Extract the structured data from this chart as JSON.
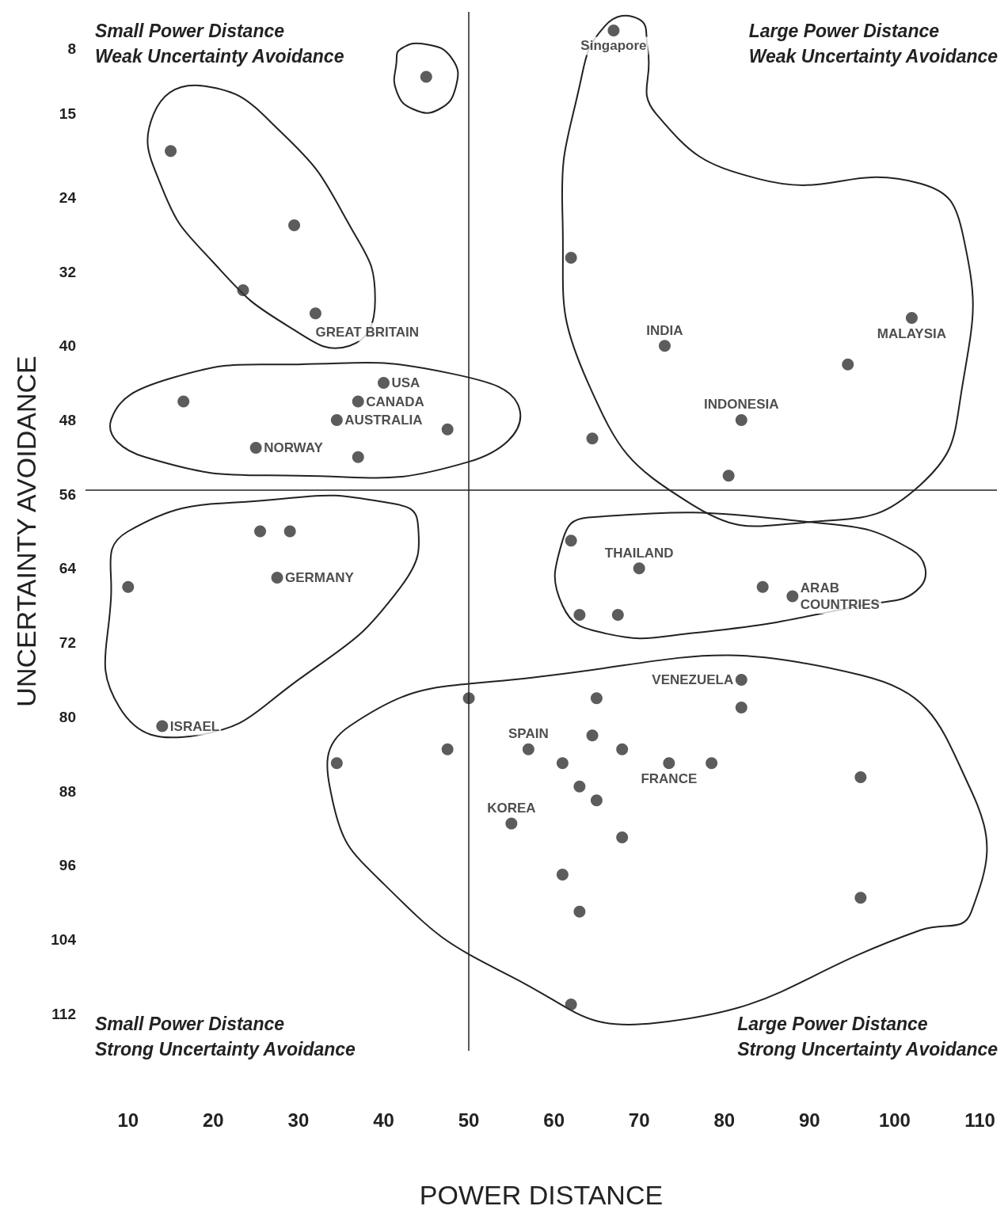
{
  "chart_data": {
    "type": "scatter",
    "xlabel": "POWER DISTANCE",
    "ylabel": "UNCERTAINTY AVOIDANCE",
    "xlim": [
      5,
      112
    ],
    "xticks": [
      10,
      20,
      30,
      40,
      50,
      60,
      70,
      80,
      90,
      100,
      110
    ],
    "ylim": [
      116,
      4
    ],
    "yticks": [
      8,
      15,
      24,
      32,
      40,
      48,
      56,
      64,
      72,
      80,
      88,
      96,
      104,
      112
    ],
    "grid": false,
    "marker": "circle",
    "series": [
      {
        "color": "#333333",
        "x": [
          67,
          45,
          15,
          29.5,
          23.5,
          32,
          73,
          102,
          94.5,
          62,
          82,
          64.5,
          80.5,
          40,
          37,
          16.5,
          34.5,
          47.5,
          25,
          37,
          25.5,
          29,
          27.5,
          10,
          14,
          62,
          70,
          84.5,
          88,
          63,
          67.5,
          82,
          82,
          65,
          50,
          64.5,
          57,
          47.5,
          34.5,
          61,
          68,
          73.5,
          78.5,
          96,
          63,
          65,
          55,
          68,
          61,
          63,
          96,
          62
        ],
        "values": [
          6,
          11,
          19,
          27,
          34,
          36.5,
          40,
          37,
          42,
          30.5,
          48,
          50,
          54,
          44,
          46,
          46,
          48,
          49,
          51,
          52,
          60,
          60,
          65,
          66,
          81,
          61,
          64,
          66,
          67,
          69,
          69,
          76,
          79,
          78,
          78,
          82,
          83.5,
          83.5,
          85,
          85,
          83.5,
          85,
          85,
          86.5,
          87.5,
          89,
          91.5,
          93,
          97,
          101,
          99.5,
          111
        ]
      }
    ],
    "ref_lines": [
      {
        "axis": "x",
        "value": 50
      },
      {
        "axis": "y",
        "value": 55.5
      }
    ],
    "annotations": [
      "Small Power Distance\nWeak Uncertainty Avoidance",
      "Large Power Distance\nWeak Uncertainty Avoidance",
      "Small Power Distance\nStrong Uncertainty Avoidance",
      "Large Power Distance\nStrong Uncertainty Avoidance",
      {
        "text": "Singapore",
        "x": 67,
        "y": 6
      },
      {
        "text": "GREAT BRITAIN",
        "x": 32,
        "y": 36.5
      },
      {
        "text": "INDIA",
        "x": 73,
        "y": 40
      },
      {
        "text": "MALAYSIA",
        "x": 102,
        "y": 37
      },
      {
        "text": "INDONESIA",
        "x": 82,
        "y": 48
      },
      {
        "text": "USA",
        "x": 40,
        "y": 44
      },
      {
        "text": "CANADA",
        "x": 37,
        "y": 46
      },
      {
        "text": "AUSTRALIA",
        "x": 34.5,
        "y": 48
      },
      {
        "text": "NORWAY",
        "x": 25,
        "y": 51
      },
      {
        "text": "GERMANY",
        "x": 27.5,
        "y": 65
      },
      {
        "text": "ISRAEL",
        "x": 14,
        "y": 81
      },
      {
        "text": "THAILAND",
        "x": 70,
        "y": 64
      },
      {
        "text": "ARAB\nCOUNTRIES",
        "x": 88,
        "y": 67
      },
      {
        "text": "VENEZUELA",
        "x": 82,
        "y": 76
      },
      {
        "text": "SPAIN",
        "x": 57,
        "y": 83.5
      },
      {
        "text": "FRANCE",
        "x": 73.5,
        "y": 85
      },
      {
        "text": "KOREA",
        "x": 55,
        "y": 91.5
      }
    ]
  }
}
